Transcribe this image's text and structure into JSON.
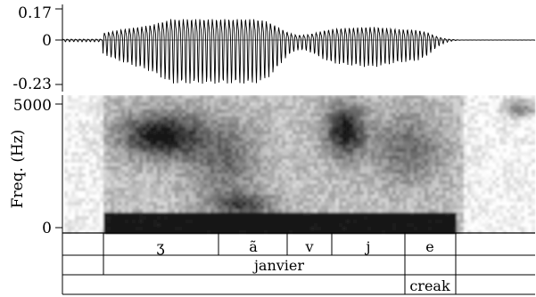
{
  "chart_data": [
    {
      "type": "line",
      "ylim": [
        -0.23,
        0.17
      ],
      "yticks": [
        "0.17",
        "0",
        "-0.23"
      ]
    },
    {
      "type": "heatmap",
      "ylabel": "Freq. (Hz)",
      "ylim": [
        0,
        5000
      ],
      "yticks": [
        "5000",
        "0"
      ]
    }
  ],
  "tiers": [
    {
      "segments": [
        "ʒ",
        "ã",
        "v",
        "j",
        "e"
      ]
    },
    {
      "segments": [
        "janvier"
      ]
    },
    {
      "segments": [
        "creak"
      ]
    }
  ]
}
